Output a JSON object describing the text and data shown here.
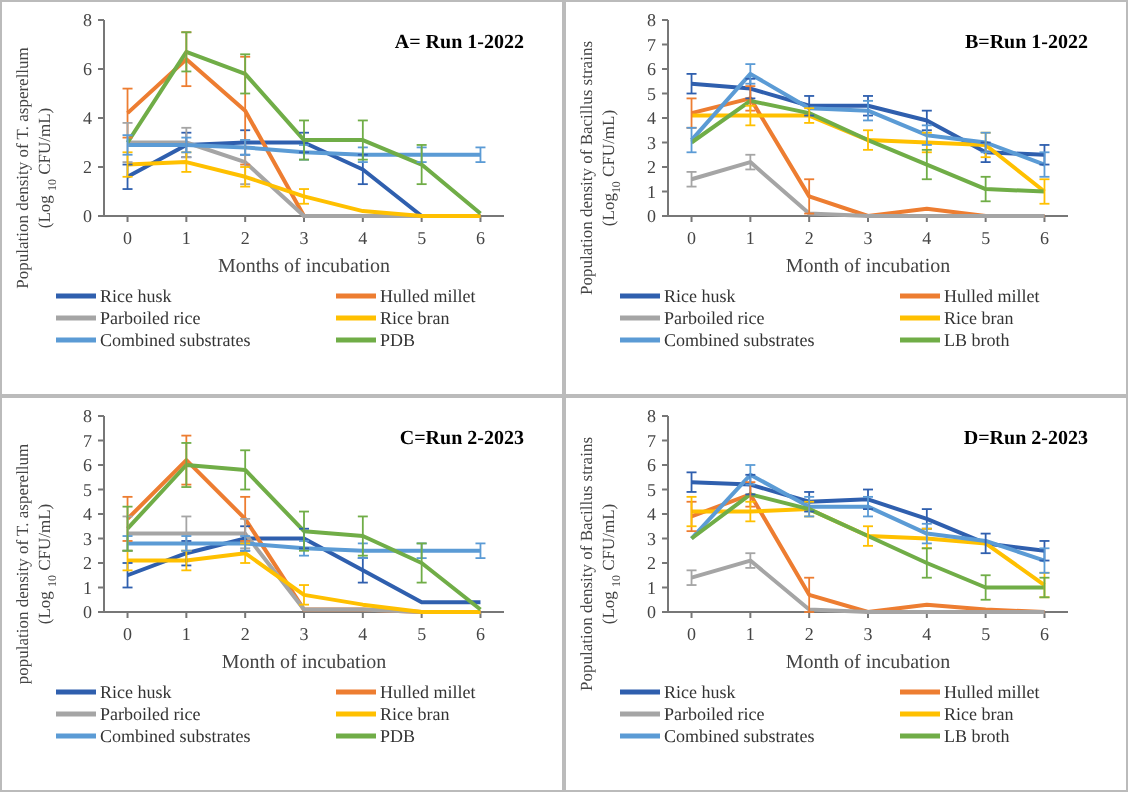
{
  "chart_data": [
    {
      "type": "line",
      "title": "A= Run 1-2022",
      "xlabel": "Months of incubation",
      "ylabel": "Population density of T. asperellum\n(Log $_{10}$ CFU/mL)",
      "x": [
        0,
        1,
        2,
        3,
        4,
        5,
        6
      ],
      "xlim": [
        -0.4,
        6.4
      ],
      "xticks": [
        0,
        1,
        2,
        3,
        4,
        5,
        6
      ],
      "ylim": [
        0,
        8
      ],
      "yticks": [
        0,
        2,
        4,
        6,
        8
      ],
      "grid": false,
      "legend": "bottom",
      "marker": "none",
      "line_style": "solid",
      "series": [
        {
          "name": "Rice husk",
          "color": "#2f5fae",
          "values": [
            1.6,
            2.9,
            3.0,
            3.0,
            1.9,
            0,
            0
          ],
          "errors": [
            0.5,
            0.5,
            0.5,
            0.4,
            0.6,
            null,
            null
          ]
        },
        {
          "name": "Hulled millet",
          "color": "#ed7d31",
          "values": [
            4.2,
            6.4,
            4.3,
            0,
            0,
            0,
            0
          ],
          "errors": [
            1.0,
            1.1,
            2.2,
            null,
            null,
            null,
            null
          ]
        },
        {
          "name": "Parboiled rice",
          "color": "#a5a5a5",
          "values": [
            3.0,
            3.0,
            2.2,
            0,
            0,
            0,
            0
          ],
          "errors": [
            0.8,
            0.6,
            0.9,
            null,
            null,
            null,
            null
          ]
        },
        {
          "name": "Rice bran",
          "color": "#ffc000",
          "values": [
            2.1,
            2.2,
            1.6,
            0.8,
            0.2,
            0,
            0
          ],
          "errors": [
            0.5,
            0.4,
            0.4,
            0.3,
            null,
            null,
            null
          ]
        },
        {
          "name": "Combined substrates",
          "color": "#5b9bd5",
          "values": [
            2.9,
            2.9,
            2.8,
            2.6,
            2.5,
            2.5,
            2.5
          ],
          "errors": [
            0.4,
            0.3,
            0.3,
            0.3,
            0.3,
            0.3,
            0.3
          ]
        },
        {
          "name": "PDB",
          "color": "#70ad47",
          "values": [
            3.0,
            6.7,
            5.8,
            3.1,
            3.1,
            2.1,
            0.1
          ],
          "errors": [
            null,
            0.8,
            0.8,
            0.8,
            0.8,
            0.8,
            null
          ]
        }
      ]
    },
    {
      "type": "line",
      "title": "B=Run 1-2022",
      "xlabel": "Month of incubation",
      "ylabel": "Population density of Bacillus strains\n(Log$_{10}$ CFU/mL)",
      "x": [
        0,
        1,
        2,
        3,
        4,
        5,
        6
      ],
      "xlim": [
        -0.4,
        6.4
      ],
      "xticks": [
        0,
        1,
        2,
        3,
        4,
        5,
        6
      ],
      "ylim": [
        0,
        8
      ],
      "yticks": [
        0,
        1,
        2,
        3,
        4,
        5,
        6,
        7,
        8
      ],
      "grid": false,
      "legend": "bottom",
      "marker": "none",
      "line_style": "solid",
      "series": [
        {
          "name": "Rice husk",
          "color": "#2f5fae",
          "values": [
            5.4,
            5.2,
            4.5,
            4.5,
            3.9,
            2.6,
            2.5
          ],
          "errors": [
            0.4,
            0.4,
            0.4,
            0.4,
            0.4,
            0.4,
            0.4
          ]
        },
        {
          "name": "Hulled millet",
          "color": "#ed7d31",
          "values": [
            4.2,
            4.8,
            0.8,
            0,
            0.3,
            0,
            0
          ],
          "errors": [
            0.6,
            0.5,
            0.7,
            null,
            null,
            null,
            null
          ]
        },
        {
          "name": "Parboiled rice",
          "color": "#a5a5a5",
          "values": [
            1.5,
            2.2,
            0.1,
            0,
            0,
            0,
            0
          ],
          "errors": [
            0.3,
            0.3,
            null,
            null,
            null,
            null,
            null
          ]
        },
        {
          "name": "Rice bran",
          "color": "#ffc000",
          "values": [
            4.1,
            4.1,
            4.1,
            3.1,
            3.0,
            2.9,
            1.0
          ],
          "errors": [
            null,
            0.4,
            0.3,
            0.4,
            0.4,
            0.5,
            0.5
          ]
        },
        {
          "name": "Combined substrates",
          "color": "#5b9bd5",
          "values": [
            3.1,
            5.8,
            4.4,
            4.3,
            3.3,
            3.0,
            2.1
          ],
          "errors": [
            0.5,
            0.4,
            null,
            0.4,
            0.4,
            0.4,
            0.5
          ]
        },
        {
          "name": "LB broth",
          "color": "#70ad47",
          "values": [
            3.0,
            4.7,
            4.2,
            3.1,
            2.1,
            1.1,
            1.0
          ],
          "errors": [
            null,
            null,
            null,
            null,
            0.6,
            0.5,
            null
          ]
        }
      ]
    },
    {
      "type": "line",
      "title": "C=Run 2-2023",
      "xlabel": "Month of incubation",
      "ylabel": "population density of T. asperellum\n(Log $_{10}$ CFU/mL)",
      "x": [
        0,
        1,
        2,
        3,
        4,
        5,
        6
      ],
      "xlim": [
        -0.4,
        6.4
      ],
      "xticks": [
        0,
        1,
        2,
        3,
        4,
        5,
        6
      ],
      "ylim": [
        0,
        8
      ],
      "yticks": [
        0,
        1,
        2,
        3,
        4,
        5,
        6,
        7,
        8
      ],
      "grid": false,
      "legend": "bottom",
      "marker": "none",
      "line_style": "solid",
      "series": [
        {
          "name": "Rice husk",
          "color": "#2f5fae",
          "values": [
            1.5,
            2.4,
            3.0,
            3.0,
            1.7,
            0.4,
            0.4
          ],
          "errors": [
            0.5,
            0.5,
            0.5,
            0.4,
            0.5,
            null,
            null
          ]
        },
        {
          "name": "Hulled millet",
          "color": "#ed7d31",
          "values": [
            3.8,
            6.2,
            3.8,
            0.1,
            0.1,
            0,
            0
          ],
          "errors": [
            0.9,
            1.0,
            0.9,
            null,
            null,
            null,
            null
          ]
        },
        {
          "name": "Parboiled rice",
          "color": "#a5a5a5",
          "values": [
            3.2,
            3.2,
            3.2,
            0.1,
            0.1,
            0,
            0
          ],
          "errors": [
            0.7,
            0.7,
            0.6,
            null,
            null,
            null,
            null
          ]
        },
        {
          "name": "Rice bran",
          "color": "#ffc000",
          "values": [
            2.1,
            2.1,
            2.4,
            0.7,
            0.3,
            0,
            0
          ],
          "errors": [
            0.4,
            0.4,
            0.4,
            0.4,
            null,
            null,
            null
          ]
        },
        {
          "name": "Combined substrates",
          "color": "#5b9bd5",
          "values": [
            2.8,
            2.8,
            2.8,
            2.6,
            2.5,
            2.5,
            2.5
          ],
          "errors": [
            0.3,
            0.3,
            0.3,
            0.3,
            0.3,
            0.3,
            0.3
          ]
        },
        {
          "name": "PDB",
          "color": "#70ad47",
          "values": [
            3.4,
            6.0,
            5.8,
            3.3,
            3.1,
            2.0,
            0.1
          ],
          "errors": [
            0.9,
            0.9,
            0.8,
            0.8,
            0.8,
            0.8,
            null
          ]
        }
      ]
    },
    {
      "type": "line",
      "title": "D=Run 2-2023",
      "xlabel": "Month of incubation",
      "ylabel": "Population density of Bacillus strains\n(Log $_{10}$ CFU/mL)",
      "x": [
        0,
        1,
        2,
        3,
        4,
        5,
        6
      ],
      "xlim": [
        -0.4,
        6.4
      ],
      "xticks": [
        0,
        1,
        2,
        3,
        4,
        5,
        6
      ],
      "ylim": [
        0,
        8
      ],
      "yticks": [
        0,
        1,
        2,
        3,
        4,
        5,
        6,
        7,
        8
      ],
      "grid": false,
      "legend": "bottom",
      "marker": "none",
      "line_style": "solid",
      "series": [
        {
          "name": "Rice husk",
          "color": "#2f5fae",
          "values": [
            5.3,
            5.2,
            4.5,
            4.6,
            3.8,
            2.8,
            2.5
          ],
          "errors": [
            0.4,
            0.4,
            0.4,
            0.4,
            0.4,
            0.4,
            0.4
          ]
        },
        {
          "name": "Hulled millet",
          "color": "#ed7d31",
          "values": [
            3.9,
            4.8,
            0.7,
            0,
            0.3,
            0.1,
            0
          ],
          "errors": [
            0.6,
            0.5,
            0.7,
            null,
            null,
            null,
            null
          ]
        },
        {
          "name": "Parboiled rice",
          "color": "#a5a5a5",
          "values": [
            1.4,
            2.1,
            0.1,
            0,
            0,
            0,
            0
          ],
          "errors": [
            0.3,
            0.3,
            null,
            null,
            null,
            null,
            null
          ]
        },
        {
          "name": "Rice bran",
          "color": "#ffc000",
          "values": [
            4.1,
            4.1,
            4.2,
            3.1,
            3.0,
            2.8,
            1.1
          ],
          "errors": [
            0.6,
            0.4,
            0.3,
            0.4,
            0.4,
            null,
            0.5
          ]
        },
        {
          "name": "Combined substrates",
          "color": "#5b9bd5",
          "values": [
            3.0,
            5.6,
            4.3,
            4.3,
            3.2,
            2.9,
            2.1
          ],
          "errors": [
            null,
            0.4,
            0.4,
            0.4,
            0.4,
            null,
            0.5
          ]
        },
        {
          "name": "LB broth",
          "color": "#70ad47",
          "values": [
            3.0,
            4.8,
            4.2,
            3.1,
            2.0,
            1.0,
            1.0
          ],
          "errors": [
            null,
            null,
            null,
            null,
            0.6,
            0.5,
            0.4
          ]
        }
      ]
    }
  ]
}
